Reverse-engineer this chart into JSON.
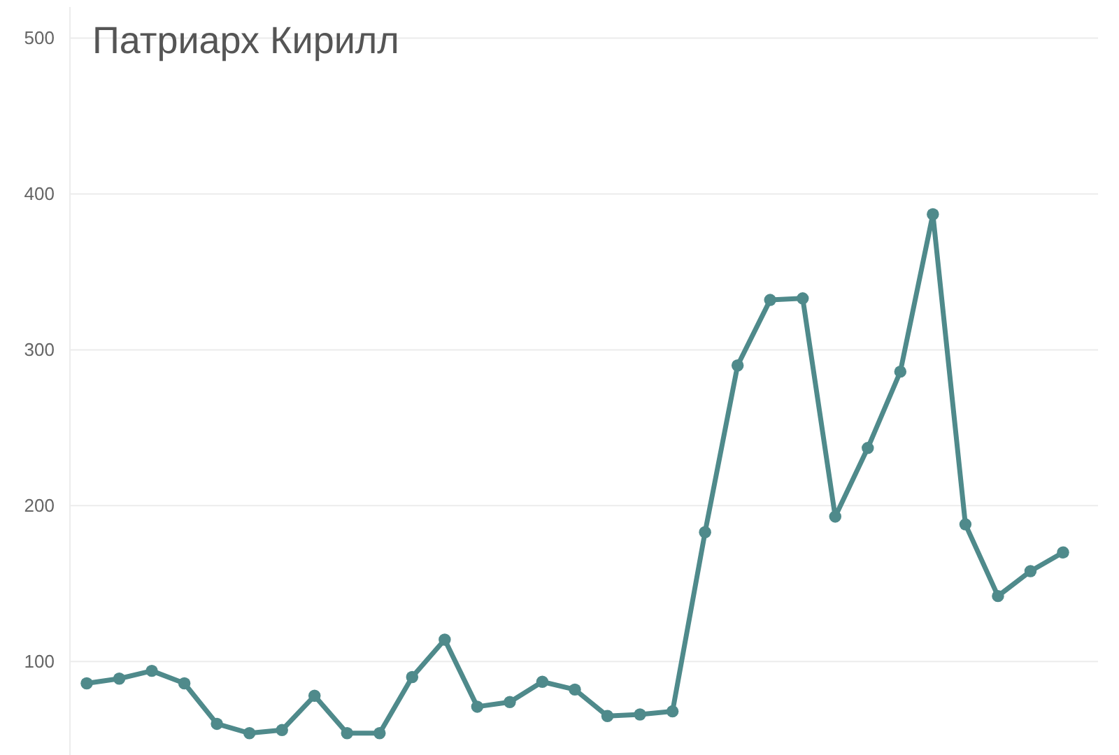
{
  "chart_data": {
    "type": "line",
    "title": "Патриарх Кирилл",
    "categories": [
      null,
      null,
      null,
      null,
      null,
      null,
      null,
      null,
      null,
      null,
      null,
      null,
      null,
      null,
      null,
      null,
      null,
      null,
      null,
      null,
      null,
      null,
      null,
      null,
      null,
      null,
      null,
      null,
      null,
      null,
      null
    ],
    "series": [
      {
        "color": "#4f8a8b",
        "values": [
          86,
          89,
          94,
          86,
          60,
          54,
          56,
          78,
          54,
          54,
          90,
          114,
          71,
          74,
          87,
          82,
          65,
          66,
          68,
          183,
          290,
          332,
          333,
          193,
          237,
          286,
          387,
          188,
          142,
          158,
          170
        ]
      }
    ],
    "ylim": [
      40,
      520
    ],
    "yticks": [
      100,
      200,
      300,
      400,
      500
    ],
    "grid": "y",
    "marker": "circle",
    "line_style": "solid",
    "legend": false
  }
}
